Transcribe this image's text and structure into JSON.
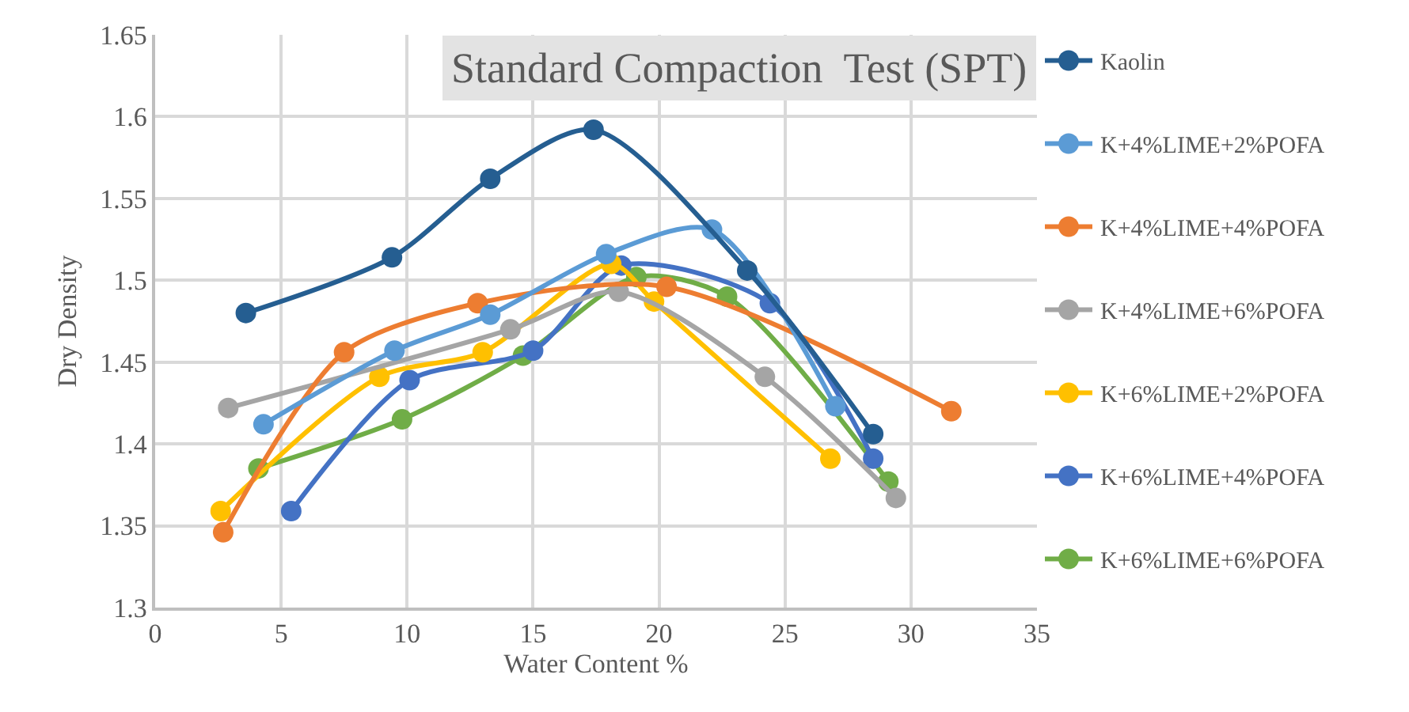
{
  "chart_data": {
    "type": "line",
    "title": "Standard Compaction  Test (SPT)",
    "xlabel": "Water Content %",
    "ylabel": "Dry Density",
    "xlim": [
      0,
      35
    ],
    "xticks": [
      0,
      5,
      10,
      15,
      20,
      25,
      30,
      35
    ],
    "ylim": [
      1.3,
      1.65
    ],
    "yticks": [
      1.3,
      1.35,
      1.4,
      1.45,
      1.5,
      1.55,
      1.6,
      1.65
    ],
    "grid": true,
    "legend": "right",
    "marker": "circle",
    "line_style": "solid",
    "series": [
      {
        "name": "Kaolin",
        "color": "#255e91",
        "x": [
          3.6,
          9.4,
          13.3,
          17.4,
          23.5,
          28.5
        ],
        "values": [
          1.48,
          1.514,
          1.562,
          1.592,
          1.506,
          1.406
        ]
      },
      {
        "name": "K+4%LIME+2%POFA",
        "color": "#5b9bd5",
        "x": [
          4.3,
          9.5,
          13.3,
          17.9,
          22.1,
          27.0
        ],
        "values": [
          1.412,
          1.457,
          1.479,
          1.516,
          1.531,
          1.423
        ]
      },
      {
        "name": "K+4%LIME+4%POFA",
        "color": "#ed7d31",
        "x": [
          2.7,
          7.5,
          12.8,
          20.3,
          31.6
        ],
        "values": [
          1.346,
          1.456,
          1.486,
          1.496,
          1.42
        ]
      },
      {
        "name": "K+4%LIME+6%POFA",
        "color": "#a5a5a5",
        "x": [
          2.9,
          14.1,
          18.4,
          24.2,
          29.4
        ],
        "values": [
          1.422,
          1.47,
          1.493,
          1.441,
          1.367
        ]
      },
      {
        "name": "K+6%LIME+2%POFA",
        "color": "#ffc000",
        "x": [
          2.6,
          8.9,
          13.0,
          18.1,
          19.8,
          26.8
        ],
        "values": [
          1.359,
          1.441,
          1.456,
          1.51,
          1.487,
          1.391
        ]
      },
      {
        "name": "K+6%LIME+4%POFA",
        "color": "#4472c4",
        "x": [
          5.4,
          10.1,
          15.0,
          18.5,
          24.4,
          28.5
        ],
        "values": [
          1.359,
          1.439,
          1.457,
          1.509,
          1.486,
          1.391
        ]
      },
      {
        "name": "K+6%LIME+6%POFA",
        "color": "#70ad47",
        "x": [
          4.1,
          9.8,
          14.6,
          19.1,
          22.7,
          29.1
        ],
        "values": [
          1.385,
          1.415,
          1.454,
          1.502,
          1.49,
          1.377
        ]
      }
    ]
  }
}
